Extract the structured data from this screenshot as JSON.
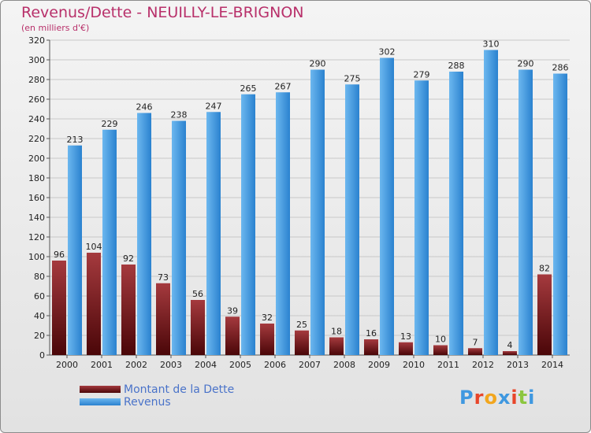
{
  "title": "Revenus/Dette - NEUILLY-LE-BRIGNON",
  "subtitle": "(en milliers d'€)",
  "colors": {
    "dette": "#7a1518",
    "revenus": "#3f98e0",
    "title": "#b8306a",
    "legend_text": "#4a73c9"
  },
  "chart_data": {
    "type": "bar",
    "title": "Revenus/Dette - NEUILLY-LE-BRIGNON",
    "ylabel": "(en milliers d'€)",
    "xlabel": "",
    "categories": [
      "2000",
      "2001",
      "2002",
      "2003",
      "2004",
      "2005",
      "2006",
      "2007",
      "2008",
      "2009",
      "2010",
      "2011",
      "2012",
      "2013",
      "2014"
    ],
    "series": [
      {
        "name": "Montant de la Dette",
        "values": [
          96,
          104,
          92,
          73,
          56,
          39,
          32,
          25,
          18,
          16,
          13,
          10,
          7,
          4,
          82
        ]
      },
      {
        "name": "Revenus",
        "values": [
          213,
          229,
          246,
          238,
          247,
          265,
          267,
          290,
          275,
          302,
          279,
          288,
          310,
          290,
          286
        ]
      }
    ],
    "ylim": [
      0,
      320
    ],
    "yticks": [
      0,
      20,
      40,
      60,
      80,
      100,
      120,
      140,
      160,
      180,
      200,
      220,
      240,
      260,
      280,
      300,
      320
    ],
    "grid": true,
    "legend_position": "bottom-left"
  },
  "legend": {
    "items": [
      "Montant de la Dette",
      "Revenus"
    ]
  },
  "logo": {
    "text": "Proxiti",
    "letter_colors": [
      "#3f98e0",
      "#e8462a",
      "#f2a61d",
      "#3f98e0",
      "#e8462a",
      "#8cc63f",
      "#3f98e0"
    ]
  }
}
